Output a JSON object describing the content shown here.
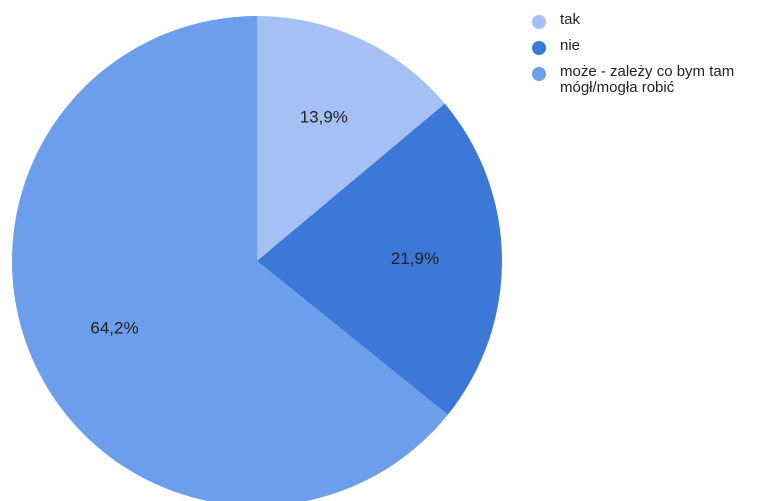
{
  "chart_data": {
    "type": "pie",
    "categories": [
      "tak",
      "nie",
      "może - zależy co bym tam\nmógł/mogła robić"
    ],
    "values": [
      13.9,
      21.9,
      64.2
    ],
    "labels": [
      "13,9%",
      "21,9%",
      "64,2%"
    ],
    "colors": [
      "#a5c0f4",
      "#3c78d8",
      "#6d9eeb"
    ],
    "legend_position": "top-right",
    "start": "top",
    "direction": "clockwise"
  }
}
